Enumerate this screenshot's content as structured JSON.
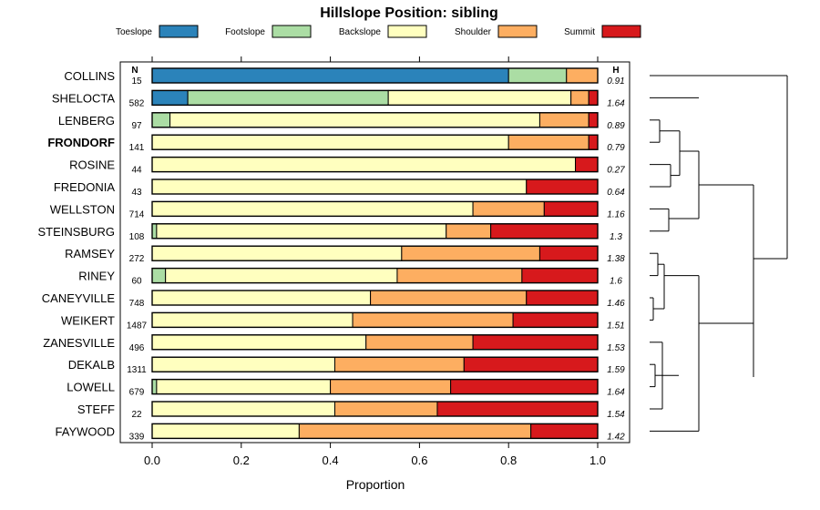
{
  "chart_data": {
    "type": "bar",
    "stacked": true,
    "orientation": "horizontal",
    "title": "Hillslope Position: sibling",
    "xlabel": "Proportion",
    "ylabel": "",
    "xlim": [
      0,
      1
    ],
    "x_ticks": [
      "0.0",
      "0.2",
      "0.4",
      "0.6",
      "0.8",
      "1.0"
    ],
    "n_header": "N",
    "h_header": "H",
    "highlighted_category": "FRONDORF",
    "legend": [
      {
        "name": "Toeslope",
        "color": "#2b83ba"
      },
      {
        "name": "Footslope",
        "color": "#abdda4"
      },
      {
        "name": "Backslope",
        "color": "#ffffbf"
      },
      {
        "name": "Shoulder",
        "color": "#fdae61"
      },
      {
        "name": "Summit",
        "color": "#d7191c"
      }
    ],
    "categories": [
      "COLLINS",
      "SHELOCTA",
      "LENBERG",
      "FRONDORF",
      "ROSINE",
      "FREDONIA",
      "WELLSTON",
      "STEINSBURG",
      "RAMSEY",
      "RINEY",
      "CANEYVILLE",
      "WEIKERT",
      "ZANESVILLE",
      "DEKALB",
      "LOWELL",
      "STEFF",
      "FAYWOOD"
    ],
    "n_values": [
      "15",
      "582",
      "97",
      "141",
      "44",
      "43",
      "714",
      "108",
      "272",
      "60",
      "748",
      "1487",
      "496",
      "1311",
      "679",
      "22",
      "339"
    ],
    "h_values": [
      "0.91",
      "1.64",
      "0.89",
      "0.79",
      "0.27",
      "0.64",
      "1.16",
      "1.3",
      "1.38",
      "1.6",
      "1.46",
      "1.51",
      "1.53",
      "1.59",
      "1.64",
      "1.54",
      "1.42"
    ],
    "series": [
      {
        "name": "Toeslope",
        "values": [
          0.8,
          0.08,
          0.0,
          0.0,
          0.0,
          0.0,
          0.0,
          0.0,
          0.0,
          0.0,
          0.0,
          0.0,
          0.0,
          0.0,
          0.0,
          0.0,
          0.0
        ]
      },
      {
        "name": "Footslope",
        "values": [
          0.13,
          0.45,
          0.04,
          0.0,
          0.0,
          0.0,
          0.0,
          0.01,
          0.0,
          0.03,
          0.0,
          0.0,
          0.0,
          0.0,
          0.01,
          0.0,
          0.0
        ]
      },
      {
        "name": "Backslope",
        "values": [
          0.0,
          0.41,
          0.83,
          0.8,
          0.95,
          0.84,
          0.72,
          0.65,
          0.56,
          0.52,
          0.49,
          0.45,
          0.48,
          0.41,
          0.39,
          0.41,
          0.33
        ]
      },
      {
        "name": "Shoulder",
        "values": [
          0.07,
          0.04,
          0.11,
          0.18,
          0.0,
          0.0,
          0.16,
          0.1,
          0.31,
          0.28,
          0.35,
          0.36,
          0.24,
          0.29,
          0.27,
          0.23,
          0.52
        ]
      },
      {
        "name": "Summit",
        "values": [
          0.0,
          0.02,
          0.02,
          0.02,
          0.05,
          0.16,
          0.12,
          0.24,
          0.13,
          0.17,
          0.16,
          0.19,
          0.28,
          0.3,
          0.33,
          0.36,
          0.15
        ]
      }
    ],
    "dendrogram": "hierarchical clustering of series shown to the right of the bars"
  }
}
